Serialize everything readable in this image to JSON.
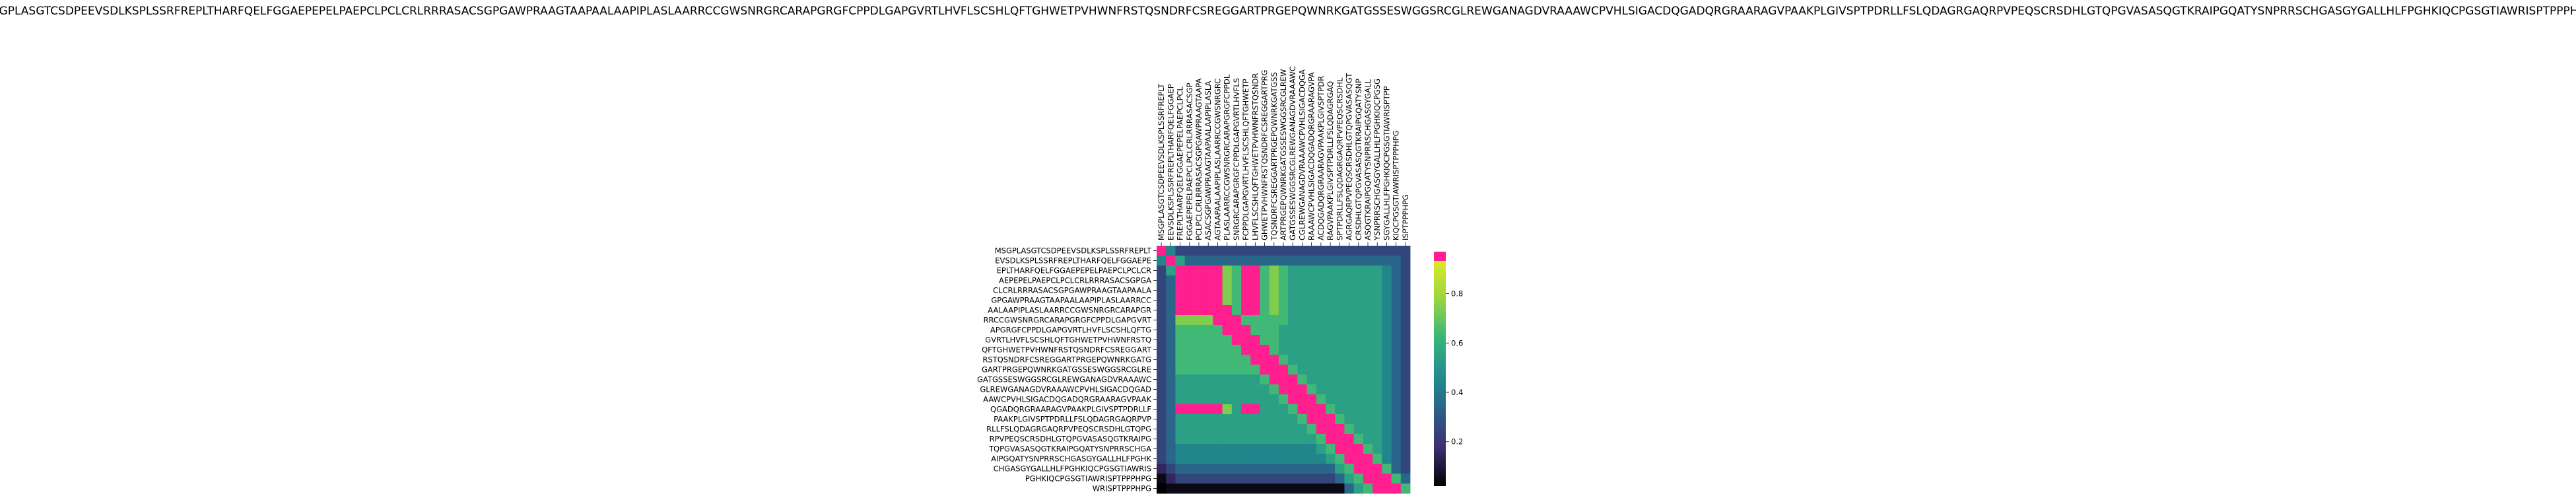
{
  "chart_data": {
    "type": "heatmap",
    "title": "MSGPLASGTCSDPEEVSDLKSPLSSRFREPLTHARFQELFGGAEPEPELPAEPCLPCLCRLRRRASACSGPGAWPRAAGTAAPAALAAPIPLASLAARRCCGWSNRGRCARAPGRGFCPPDLGAPGVRTLHVFLSCSHLQFTGHWETPVHWNFRSTQSNDRFCSREGGARTPRGEPQWNRKGATGSSESWGGSRCGLREWGANAGDVRAAAWCPVHLSIGACDQGADQRGRAARAGVPAAKPLGIVSPTPDRLLFSLQDAGRGAQRPVPEQSCRSDHLGTQPGVASASQGTKRAIPGQATYSNPRRSCHGASGYGALLHLFPGHKIQCPGSGTIAWRISPTPPPHPG",
    "row_labels": [
      "MSGPLASGTCSDPEEVSDLKSPLSSRFREPLT",
      "EVSDLKSPLSSRFREPLTHARFQELFGGAEPE",
      "EPLTHARFQELFGGAEPEPELPAEPCLPCLCR",
      "AEPEPELPAEPCLPCLCRLRRRASACSGPGA",
      "CLCRLRRRASACSGPGAWPRAAGTAAPAALA",
      "GPGAWPRAAGTAAPAALAAPIPLASLAARRCC",
      "AALAAPIPLASLAARRCCGWSNRGRCARAPGR",
      "RRCCGWSNRGRCARAPGRGFCPPDLGAPGVRT",
      "APGRGFCPPDLGAPGVRTLHVFLSCSHLQFTG",
      "GVRTLHVFLSCSHLQFTGHWETPVHWNFRSTQ",
      "QFTGHWETPVHWNFRSTQSNDRFCSREGGART",
      "RSTQSNDRFCSREGGARTPRGEPQWNRKGATG",
      "GARTPRGEPQWNRKGATGSSESWGGSRCGLRE",
      "GATGSSESWGGSRCGLREWGANAGDVRAAAWC",
      "GLREWGANAGDVRAAAWCPVHLSIGACDQGAD",
      "AAWCPVHLSIGACDQGADQRGRAARAGVPAAK",
      "QGADQRGRAARAGVPAAKPLGIVSPTPDRLLF",
      "PAAKPLGIVSPTPDRLLFSLQDAGRGAQRPVP",
      "RLLFSLQDAGRGAQRPVPEQSCRSDHLGTQPG",
      "RPVPEQSCRSDHLGTQPGVASASQGTKRAIPG",
      "TQPGVASASQGTKRAIPGQATYSNPRRSCHGA",
      "AIPGQATYSNPRRSCHGASGYGALLHLFPGHK",
      "CHGASGYGALLHLFPGHKIQCPGSGTIAWRIS",
      "PGHKIQCPGSGTIAWRISPTPPPHPG",
      "WRISPTPPPHPG"
    ],
    "col_labels": [
      "MSGPLASGTCSDPEEVSDLKSPLSSRFREPLT",
      "EEVSDLKSPLSSRFREPLTHARFQELFGGAEP",
      "FREPLTHARFQELFGGAEPEPELPAEPCLPCL",
      "FGGAEPEPELPAEPCLPCLCRLRRRASACSGP",
      "PCLPCLCRLRRRASACSGPGAWPRAAGTAAPA",
      "ASACSGPGAWPRAAGTAAPAALAAPIPLASLA",
      "AGTAAPAALAAPIPLASLAARRCCGWSNRGRC",
      "PLASLAARRCCGWSNRGRCARAPGRGFCPPDL",
      "SNRGRCARAPGRGFCPPDLGAPGVRTLHVFLS",
      "FCPPDLGAPGVRTLHVFLSCSHLQFTGHWETP",
      "LHVFLSCSHLQFTGHWETPVHWNFRSTQSNDR",
      "GHWETPVHWNFRSTQSNDRFCSREGGARTPRG",
      "TQSNDRFCSREGGARTPRGEPQWNRKGATGSS",
      "ARTPRGEPQWNRKGATGSSESWGGSRCGLREW",
      "GATGSSESWGGSRCGLREWGANAGDVRAAAWC",
      "CGLREWGANAGDVRAAAWCPVHLSIGACDQGA",
      "RAAAWCPVHLSIGACDQGADQRGRAARAGVPA",
      "ACDQGADQRGRAARAGVPAAKPLGIVSPTPDR",
      "RAGVPAAKPLGIVSPTPDRLLFSLQDAGRGAQ",
      "SPTPDRLLFSLQDAGRGAQRPVPEQSCRSDHL",
      "AGRGAQRPVPEQSCRSDHLGTQPGVASASQGT",
      "CRSDHLGTQPGVASASQGTKRAIPGQATYSNP",
      "ASQGTKRAIPGQATYSNPRRSCHGASGYGALL",
      "YSNPRRSCHGASGYGALLHLFPGHKIQCPGSG",
      "SGYGALLHLFPGHKIQCPGSGTIAWRISPTPP",
      "KIQCPGSGTIAWRISPTPPPHPG",
      "ISPTPPPHPG"
    ],
    "values": [
      [
        0.97,
        0.45,
        0.25,
        0.25,
        0.25,
        0.25,
        0.25,
        0.25,
        0.25,
        0.25,
        0.25,
        0.25,
        0.25,
        0.25,
        0.25,
        0.25,
        0.25,
        0.25,
        0.25,
        0.25,
        0.25,
        0.25,
        0.25,
        0.25,
        0.25,
        0.25,
        0.25
      ],
      [
        0.45,
        0.97,
        0.55,
        0.35,
        0.35,
        0.35,
        0.35,
        0.35,
        0.35,
        0.35,
        0.35,
        0.35,
        0.35,
        0.35,
        0.35,
        0.35,
        0.35,
        0.35,
        0.35,
        0.35,
        0.35,
        0.35,
        0.35,
        0.35,
        0.35,
        0.35,
        0.25
      ],
      [
        0.25,
        0.55,
        0.97,
        0.97,
        0.97,
        0.97,
        0.97,
        0.75,
        0.65,
        0.97,
        0.97,
        0.65,
        0.75,
        0.65,
        0.55,
        0.55,
        0.55,
        0.55,
        0.55,
        0.55,
        0.55,
        0.55,
        0.55,
        0.55,
        0.45,
        0.35,
        0.25
      ],
      [
        0.25,
        0.35,
        0.97,
        0.97,
        0.97,
        0.97,
        0.97,
        0.75,
        0.65,
        0.97,
        0.97,
        0.65,
        0.75,
        0.65,
        0.55,
        0.55,
        0.55,
        0.55,
        0.55,
        0.55,
        0.55,
        0.55,
        0.55,
        0.55,
        0.45,
        0.35,
        0.25
      ],
      [
        0.25,
        0.35,
        0.97,
        0.97,
        0.97,
        0.97,
        0.97,
        0.75,
        0.65,
        0.97,
        0.97,
        0.65,
        0.75,
        0.65,
        0.55,
        0.55,
        0.55,
        0.55,
        0.55,
        0.55,
        0.55,
        0.55,
        0.55,
        0.55,
        0.45,
        0.35,
        0.25
      ],
      [
        0.25,
        0.35,
        0.97,
        0.97,
        0.97,
        0.97,
        0.97,
        0.75,
        0.65,
        0.97,
        0.97,
        0.65,
        0.75,
        0.65,
        0.55,
        0.55,
        0.55,
        0.55,
        0.55,
        0.55,
        0.55,
        0.55,
        0.55,
        0.55,
        0.45,
        0.35,
        0.25
      ],
      [
        0.25,
        0.35,
        0.97,
        0.97,
        0.97,
        0.97,
        0.97,
        0.97,
        0.65,
        0.97,
        0.97,
        0.65,
        0.75,
        0.65,
        0.55,
        0.55,
        0.55,
        0.55,
        0.55,
        0.55,
        0.55,
        0.55,
        0.55,
        0.55,
        0.45,
        0.35,
        0.25
      ],
      [
        0.25,
        0.35,
        0.75,
        0.75,
        0.75,
        0.75,
        0.97,
        0.97,
        0.97,
        0.65,
        0.65,
        0.65,
        0.65,
        0.65,
        0.55,
        0.55,
        0.55,
        0.55,
        0.55,
        0.55,
        0.55,
        0.55,
        0.55,
        0.55,
        0.45,
        0.35,
        0.25
      ],
      [
        0.25,
        0.35,
        0.65,
        0.65,
        0.65,
        0.65,
        0.65,
        0.97,
        0.97,
        0.97,
        0.65,
        0.65,
        0.65,
        0.55,
        0.55,
        0.55,
        0.55,
        0.55,
        0.55,
        0.55,
        0.55,
        0.55,
        0.55,
        0.55,
        0.45,
        0.35,
        0.25
      ],
      [
        0.25,
        0.35,
        0.65,
        0.65,
        0.65,
        0.65,
        0.65,
        0.65,
        0.97,
        0.97,
        0.97,
        0.65,
        0.65,
        0.55,
        0.55,
        0.55,
        0.55,
        0.55,
        0.55,
        0.55,
        0.55,
        0.55,
        0.55,
        0.55,
        0.45,
        0.35,
        0.25
      ],
      [
        0.25,
        0.35,
        0.65,
        0.65,
        0.65,
        0.65,
        0.65,
        0.65,
        0.65,
        0.97,
        0.97,
        0.97,
        0.65,
        0.55,
        0.55,
        0.55,
        0.55,
        0.55,
        0.55,
        0.55,
        0.55,
        0.55,
        0.55,
        0.55,
        0.45,
        0.35,
        0.25
      ],
      [
        0.25,
        0.35,
        0.65,
        0.65,
        0.65,
        0.65,
        0.65,
        0.65,
        0.65,
        0.65,
        0.97,
        0.97,
        0.97,
        0.65,
        0.55,
        0.55,
        0.55,
        0.55,
        0.55,
        0.55,
        0.55,
        0.55,
        0.55,
        0.55,
        0.45,
        0.35,
        0.25
      ],
      [
        0.25,
        0.35,
        0.65,
        0.65,
        0.65,
        0.65,
        0.65,
        0.65,
        0.65,
        0.65,
        0.65,
        0.97,
        0.97,
        0.97,
        0.65,
        0.55,
        0.55,
        0.55,
        0.55,
        0.55,
        0.55,
        0.55,
        0.55,
        0.55,
        0.45,
        0.35,
        0.25
      ],
      [
        0.25,
        0.35,
        0.55,
        0.55,
        0.55,
        0.55,
        0.55,
        0.55,
        0.55,
        0.55,
        0.55,
        0.65,
        0.97,
        0.97,
        0.97,
        0.65,
        0.55,
        0.55,
        0.55,
        0.55,
        0.55,
        0.55,
        0.55,
        0.55,
        0.45,
        0.35,
        0.25
      ],
      [
        0.25,
        0.35,
        0.55,
        0.55,
        0.55,
        0.55,
        0.55,
        0.55,
        0.55,
        0.55,
        0.55,
        0.55,
        0.65,
        0.97,
        0.97,
        0.97,
        0.65,
        0.55,
        0.55,
        0.55,
        0.55,
        0.55,
        0.55,
        0.55,
        0.45,
        0.35,
        0.25
      ],
      [
        0.25,
        0.35,
        0.55,
        0.55,
        0.55,
        0.55,
        0.55,
        0.55,
        0.55,
        0.55,
        0.55,
        0.55,
        0.55,
        0.65,
        0.97,
        0.97,
        0.97,
        0.65,
        0.55,
        0.55,
        0.55,
        0.55,
        0.55,
        0.55,
        0.45,
        0.35,
        0.25
      ],
      [
        0.25,
        0.35,
        0.97,
        0.97,
        0.97,
        0.97,
        0.97,
        0.75,
        0.55,
        0.97,
        0.97,
        0.55,
        0.55,
        0.55,
        0.65,
        0.97,
        0.97,
        0.97,
        0.65,
        0.55,
        0.55,
        0.55,
        0.55,
        0.55,
        0.45,
        0.35,
        0.25
      ],
      [
        0.25,
        0.35,
        0.55,
        0.55,
        0.55,
        0.55,
        0.55,
        0.55,
        0.55,
        0.55,
        0.55,
        0.55,
        0.55,
        0.55,
        0.55,
        0.65,
        0.97,
        0.97,
        0.97,
        0.65,
        0.55,
        0.55,
        0.55,
        0.55,
        0.45,
        0.35,
        0.25
      ],
      [
        0.25,
        0.35,
        0.55,
        0.55,
        0.55,
        0.55,
        0.55,
        0.55,
        0.55,
        0.55,
        0.55,
        0.55,
        0.55,
        0.55,
        0.55,
        0.55,
        0.65,
        0.97,
        0.97,
        0.97,
        0.65,
        0.55,
        0.55,
        0.55,
        0.45,
        0.35,
        0.25
      ],
      [
        0.25,
        0.35,
        0.55,
        0.55,
        0.55,
        0.55,
        0.55,
        0.55,
        0.55,
        0.55,
        0.55,
        0.55,
        0.55,
        0.55,
        0.55,
        0.55,
        0.55,
        0.65,
        0.97,
        0.97,
        0.97,
        0.65,
        0.55,
        0.55,
        0.45,
        0.35,
        0.25
      ],
      [
        0.25,
        0.35,
        0.45,
        0.45,
        0.45,
        0.45,
        0.45,
        0.45,
        0.45,
        0.45,
        0.45,
        0.45,
        0.45,
        0.45,
        0.45,
        0.45,
        0.45,
        0.55,
        0.65,
        0.97,
        0.97,
        0.97,
        0.65,
        0.55,
        0.45,
        0.35,
        0.25
      ],
      [
        0.25,
        0.35,
        0.45,
        0.45,
        0.45,
        0.45,
        0.45,
        0.45,
        0.45,
        0.45,
        0.45,
        0.45,
        0.45,
        0.45,
        0.45,
        0.45,
        0.45,
        0.45,
        0.55,
        0.65,
        0.97,
        0.97,
        0.97,
        0.65,
        0.45,
        0.35,
        0.25
      ],
      [
        0.15,
        0.25,
        0.35,
        0.35,
        0.35,
        0.35,
        0.35,
        0.35,
        0.35,
        0.35,
        0.35,
        0.35,
        0.35,
        0.35,
        0.35,
        0.35,
        0.35,
        0.35,
        0.35,
        0.55,
        0.65,
        0.97,
        0.97,
        0.97,
        0.65,
        0.35,
        0.25
      ],
      [
        0.05,
        0.15,
        0.25,
        0.25,
        0.25,
        0.25,
        0.25,
        0.25,
        0.25,
        0.25,
        0.25,
        0.25,
        0.25,
        0.25,
        0.25,
        0.25,
        0.25,
        0.25,
        0.25,
        0.35,
        0.55,
        0.65,
        0.97,
        0.97,
        0.97,
        0.65,
        0.35
      ],
      [
        0.02,
        0.05,
        0.05,
        0.05,
        0.05,
        0.05,
        0.05,
        0.05,
        0.05,
        0.05,
        0.05,
        0.05,
        0.05,
        0.05,
        0.05,
        0.05,
        0.05,
        0.05,
        0.05,
        0.05,
        0.35,
        0.55,
        0.65,
        0.97,
        0.97,
        0.97,
        0.65
      ]
    ],
    "colorbar": {
      "ticks": [
        0.2,
        0.4,
        0.6,
        0.8
      ],
      "tick_labels": [
        "0.2",
        "0.4",
        "0.6",
        "0.8"
      ],
      "range": [
        0.02,
        0.97
      ],
      "stops": [
        "#000000",
        "#3b2f6e",
        "#2b5f8a",
        "#21908c",
        "#3bb67a",
        "#9ad63b",
        "#d7ea2c"
      ],
      "clip_color": "#ff1f8e"
    },
    "xlabel": "",
    "ylabel": "",
    "grid": false,
    "legend": "right"
  }
}
